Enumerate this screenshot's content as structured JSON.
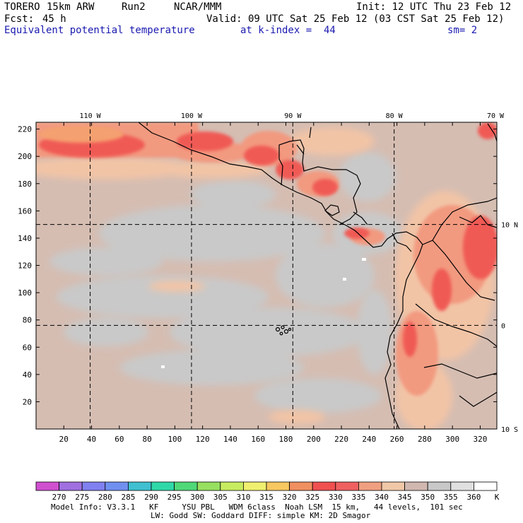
{
  "header": {
    "model": "TORERO",
    "resolution": "15km ARW",
    "run": "Run2",
    "org": "NCAR/MMM",
    "init": "Init: 12 UTC Thu 23 Feb 12",
    "fcst_label": "Fcst:",
    "fcst_value": "45 h",
    "valid": "Valid: 09 UTC Sat 25 Feb 12 (03 CST Sat 25 Feb 12)",
    "field": "Equivalent potential temperature",
    "level": "at k-index =  44",
    "smoothing": "sm= 2"
  },
  "map": {
    "x_ticks": [
      20,
      40,
      60,
      80,
      100,
      120,
      140,
      160,
      180,
      200,
      220,
      240,
      260,
      280,
      300,
      320
    ],
    "y_ticks": [
      20,
      40,
      60,
      80,
      100,
      120,
      140,
      160,
      180,
      200,
      220
    ],
    "x_range": [
      0,
      332
    ],
    "y_range": [
      0,
      225
    ],
    "longitudes": [
      {
        "label": "110 W",
        "x": 39
      },
      {
        "label": "100 W",
        "x": 112
      },
      {
        "label": "90 W",
        "x": 185
      },
      {
        "label": "80 W",
        "x": 258
      },
      {
        "label": "70 W",
        "x": 331
      }
    ],
    "latitudes": [
      {
        "label": "10 N",
        "y": 150
      },
      {
        "label": "0",
        "y": 76
      },
      {
        "label": "10 S",
        "y": 0
      }
    ],
    "grid_style": "dashed"
  },
  "colorbar": {
    "unit": "K",
    "labels": [
      "270",
      "275",
      "280",
      "285",
      "290",
      "295",
      "300",
      "305",
      "310",
      "315",
      "320",
      "325",
      "330",
      "335",
      "340",
      "345",
      "350",
      "355",
      "360"
    ],
    "colors": [
      "#d050d0",
      "#a070e0",
      "#8080f0",
      "#7090f0",
      "#40c0d0",
      "#30d8a8",
      "#50d878",
      "#98e060",
      "#c8ec60",
      "#f0f070",
      "#f8c860",
      "#f09060",
      "#f05050",
      "#f06060",
      "#f0a080",
      "#f0c8a8",
      "#d0b8b0",
      "#c8c8c8",
      "#e0e0e0",
      "#ffffff"
    ]
  },
  "footer": {
    "line1": "Model Info: V3.3.1   KF     YSU PBL   WDM 6class  Noah LSM  15 km,   44 levels,  101 sec",
    "line2": "LW: Godd SW: Goddard DIFF: simple KM: 2D Smagor"
  }
}
